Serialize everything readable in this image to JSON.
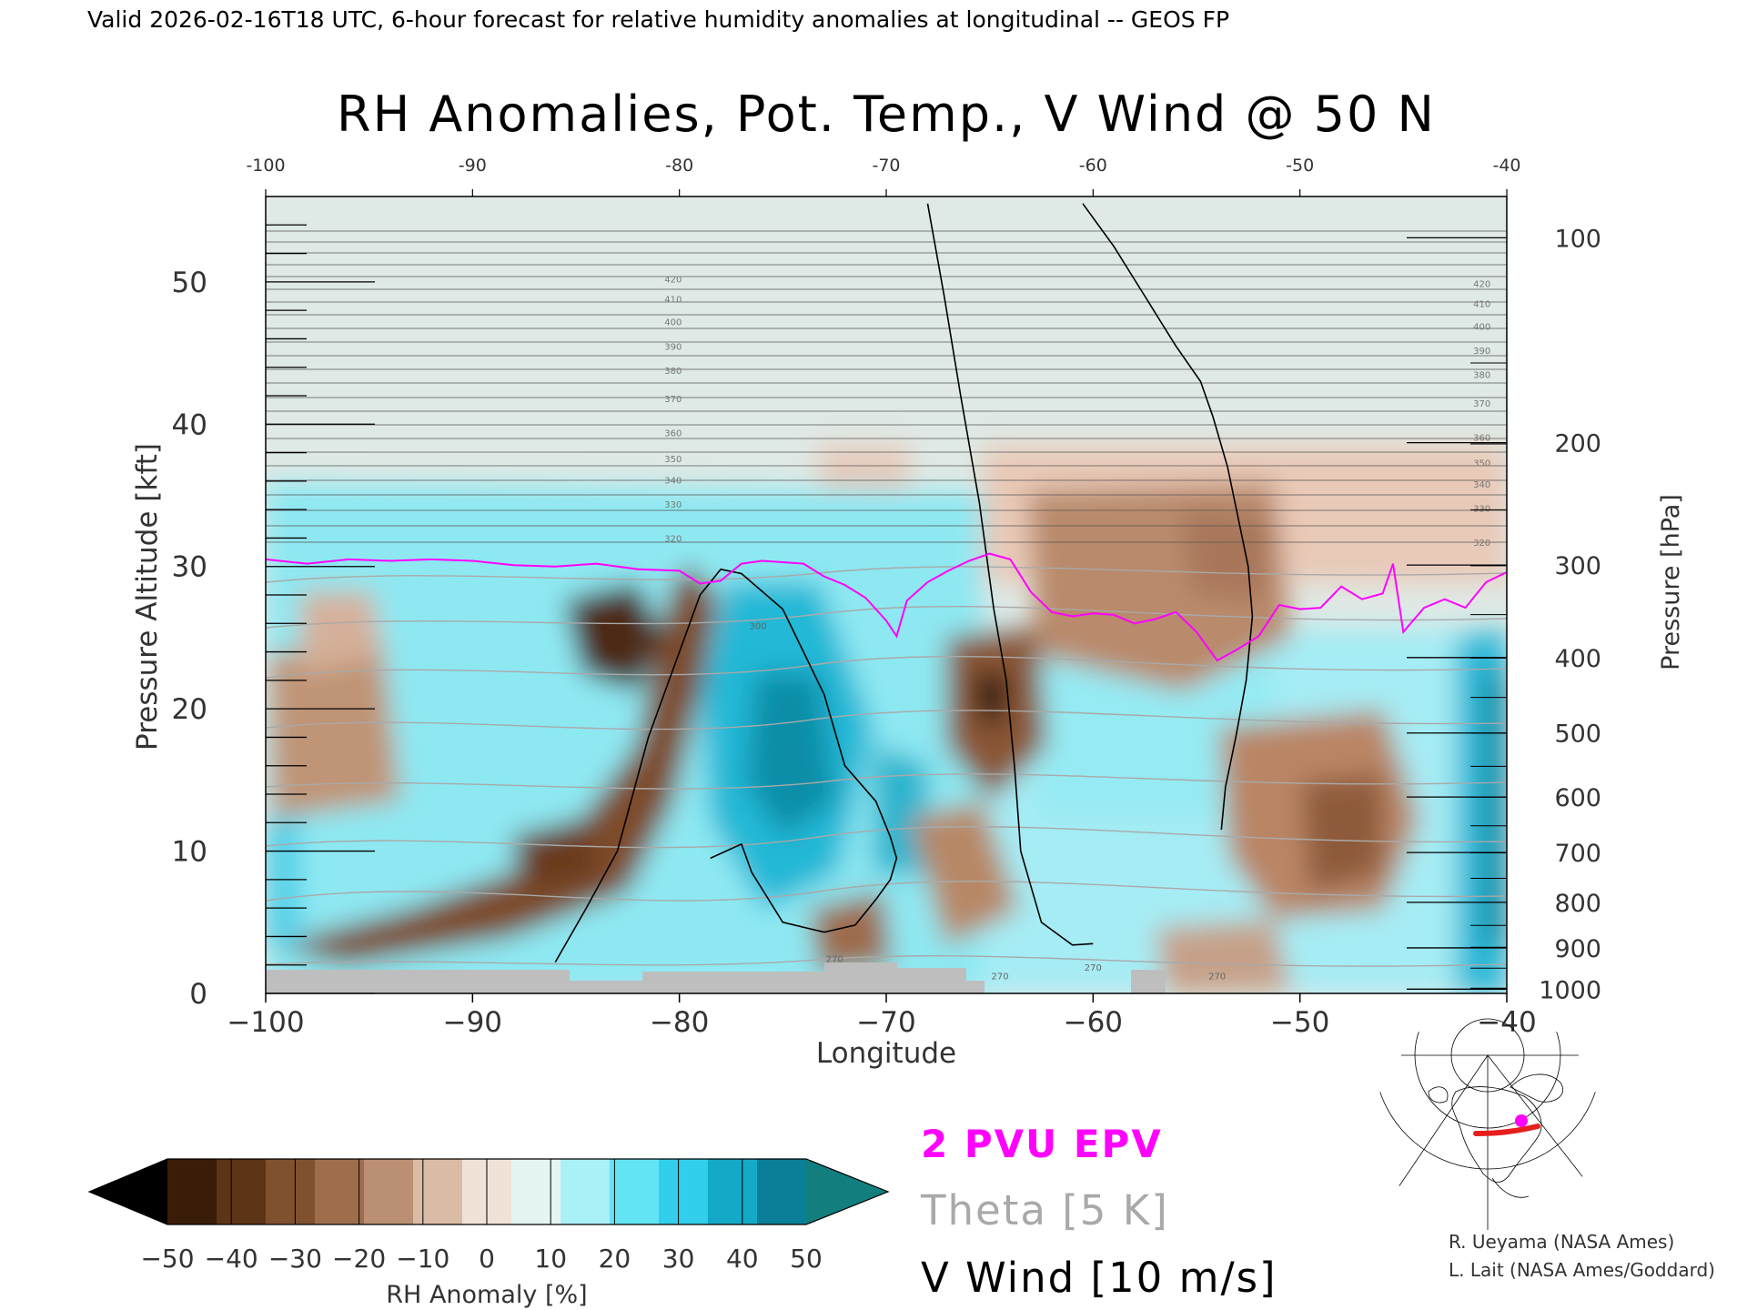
{
  "header": {
    "valid_line": "Valid 2026-02-16T18 UTC, 6-hour forecast for relative humidity anomalies at longitudinal -- GEOS FP"
  },
  "chart_data": {
    "type": "heatmap",
    "title": "RH Anomalies, Pot. Temp., V Wind @ 50 N",
    "xlabel": "Longitude",
    "ylabel": "Pressure Altitude [kft]",
    "y2label": "Pressure [hPa]",
    "xlim": [
      -100,
      -40
    ],
    "ylim": [
      0,
      56
    ],
    "x_ticks": [
      -100,
      -90,
      -80,
      -70,
      -60,
      -50,
      -40
    ],
    "x_tick_labels": [
      "−100",
      "−90",
      "−80",
      "−70",
      "−60",
      "−50",
      "−40"
    ],
    "top_ticks": [
      -100,
      -90,
      -80,
      -70,
      -60,
      -50,
      -40
    ],
    "top_tick_labels": [
      "-100",
      "-90",
      "-80",
      "-70",
      "-60",
      "-50",
      "-40"
    ],
    "y_ticks": [
      0,
      10,
      20,
      30,
      40,
      50
    ],
    "pressure_ticks": [
      {
        "hpa": 100,
        "kft": 53.1
      },
      {
        "hpa": 200,
        "kft": 38.7
      },
      {
        "hpa": 300,
        "kft": 30.1
      },
      {
        "hpa": 400,
        "kft": 23.6
      },
      {
        "hpa": 500,
        "kft": 18.3
      },
      {
        "hpa": 600,
        "kft": 13.8
      },
      {
        "hpa": 700,
        "kft": 9.9
      },
      {
        "hpa": 800,
        "kft": 6.4
      },
      {
        "hpa": 900,
        "kft": 3.2
      },
      {
        "hpa": 1000,
        "kft": 0.3
      }
    ],
    "theta_levels": [
      270,
      275,
      280,
      285,
      290,
      295,
      300,
      305,
      310,
      315,
      320,
      325,
      330,
      335,
      340,
      345,
      350,
      355,
      360,
      365,
      370,
      375,
      380,
      385,
      390,
      395,
      400,
      405,
      410,
      415,
      420
    ],
    "theta_labels": [
      "270",
      "300",
      "310",
      "320",
      "330",
      "340",
      "350",
      "360",
      "370",
      "380",
      "390",
      "400",
      "410",
      "420"
    ],
    "epv_2pvu_line": {
      "lon": [
        -100,
        -98,
        -96,
        -94,
        -92,
        -90,
        -88,
        -86,
        -84,
        -82,
        -80,
        -79,
        -78,
        -77,
        -76,
        -75,
        -74,
        -73,
        -72,
        -71,
        -70,
        -69.5,
        -69,
        -68,
        -67,
        -66,
        -65,
        -64,
        -63,
        -62,
        -61,
        -60,
        -59,
        -58,
        -57,
        -56,
        -55,
        -54,
        -53,
        -52,
        -51,
        -50,
        -49,
        -48,
        -47,
        -46,
        -45.5,
        -45,
        -44,
        -43,
        -42,
        -41,
        -40
      ],
      "kft": [
        30.5,
        30.2,
        30.5,
        30.4,
        30.5,
        30.4,
        30.1,
        30.0,
        30.2,
        29.8,
        29.7,
        28.8,
        29.0,
        30.2,
        30.4,
        30.3,
        30.2,
        29.3,
        28.7,
        27.8,
        26.2,
        25.1,
        27.6,
        28.9,
        29.7,
        30.4,
        30.9,
        30.5,
        28.2,
        26.8,
        26.5,
        26.7,
        26.6,
        26.0,
        26.3,
        26.8,
        25.4,
        23.4,
        24.2,
        25.1,
        27.3,
        27.0,
        27.1,
        28.6,
        27.7,
        28.1,
        30.2,
        25.4,
        27.1,
        27.7,
        27.1,
        28.9,
        29.6
      ]
    },
    "vwind_zero_lines": [
      {
        "lon": [
          -86,
          -84.5,
          -83,
          -81.5,
          -80,
          -79,
          -78,
          -77,
          -75,
          -73,
          -72,
          -70.5,
          -69.8,
          -69.5,
          -69.8,
          -70.5,
          -71.5,
          -73,
          -75,
          -76.5,
          -77,
          -78.5
        ],
        "kft": [
          2.2,
          6.0,
          10.0,
          18.0,
          24.0,
          28.0,
          29.8,
          29.5,
          27.0,
          21.0,
          16.0,
          13.5,
          11.0,
          9.5,
          8.0,
          6.6,
          4.8,
          4.3,
          5.0,
          8.5,
          10.5,
          9.5
        ]
      },
      {
        "lon": [
          -68,
          -67.2,
          -66.4,
          -65.5,
          -64.8,
          -64.2,
          -63.8,
          -63.5,
          -62.5,
          -61,
          -60
        ],
        "kft": [
          55.5,
          49.0,
          42.0,
          34.5,
          27.0,
          22.0,
          16.0,
          10.0,
          5.0,
          3.4,
          3.5
        ]
      },
      {
        "lon": [
          -60.5,
          -59,
          -57.5,
          -56,
          -54.8,
          -54.2,
          -53.5,
          -53,
          -52.5,
          -52.3,
          -52.6,
          -53.1,
          -53.6,
          -53.8
        ],
        "kft": [
          55.5,
          52.5,
          49.0,
          45.5,
          43.0,
          40.5,
          37.0,
          33.5,
          30.0,
          26.5,
          22.0,
          18.0,
          14.5,
          11.5
        ]
      }
    ],
    "legend_entries": [
      {
        "label": "2 PVU EPV",
        "color": "#ff00ff"
      },
      {
        "label": "Theta [5 K]",
        "color": "#a9a9a9"
      },
      {
        "label": "V Wind [10 m/s]",
        "color": "#000000"
      }
    ],
    "colorbar": {
      "label": "RH Anomaly [%]",
      "ticks": [
        "−50",
        "−40",
        "−30",
        "−20",
        "−10",
        "0",
        "10",
        "20",
        "30",
        "40",
        "50"
      ],
      "tick_values": [
        -50,
        -40,
        -30,
        -20,
        -10,
        0,
        10,
        20,
        30,
        40,
        50
      ],
      "colors": [
        "#000000",
        "#3a1d08",
        "#5d3416",
        "#80512f",
        "#9e6e4c",
        "#bb8f73",
        "#d9bba6",
        "#f0e2d7",
        "#e4f5f3",
        "#aaf0f7",
        "#62e4f4",
        "#32cfed",
        "#15a9c8",
        "#0b7f98",
        "#127f7e"
      ],
      "extend": "both"
    },
    "map_marker_color": "#ff00ff",
    "map_track_color": "#e61e1e"
  },
  "credits": [
    "R. Ueyama (NASA Ames)",
    "L. Lait (NASA Ames/Goddard)"
  ]
}
